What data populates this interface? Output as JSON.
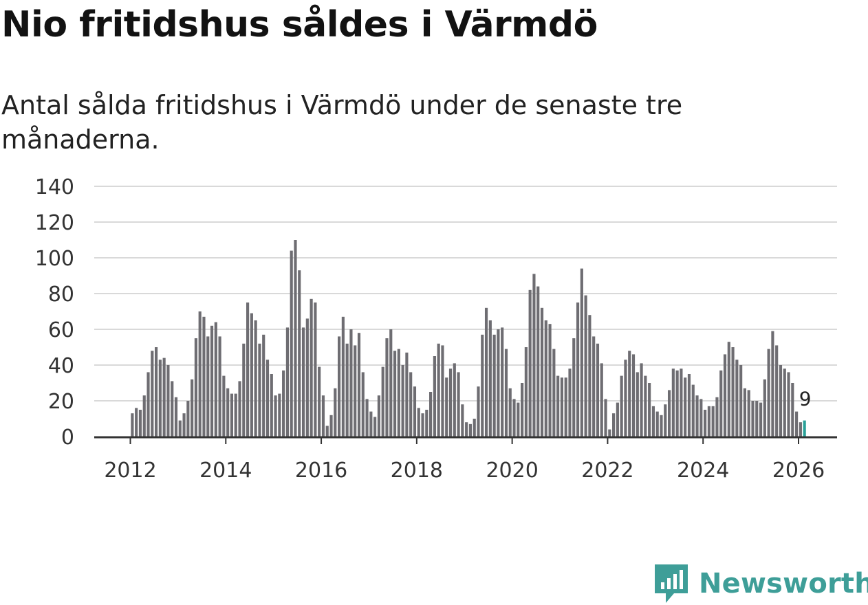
{
  "header": {
    "title": "Nio fritidshus såldes i Värmdö",
    "subtitle": "Antal sålda fritidshus i Värmdö under de senaste tre månaderna."
  },
  "brand": {
    "name": "Newsworthy",
    "color": "#3e9e98"
  },
  "colors": {
    "bar": "#6e6d72",
    "highlight": "#2aa198",
    "grid": "#d9d9d9",
    "axis": "#333333"
  },
  "chart_data": {
    "type": "bar",
    "title": "Nio fritidshus såldes i Värmdö",
    "xlabel": "",
    "ylabel": "",
    "ylim": [
      0,
      140
    ],
    "y_ticks": [
      0,
      20,
      40,
      60,
      80,
      100,
      120,
      140
    ],
    "x_ticks": [
      "2012",
      "2014",
      "2016",
      "2018",
      "2020",
      "2022",
      "2024",
      "2026"
    ],
    "start": "2012-01",
    "interval": "month",
    "highlight_label": "9",
    "values": [
      13,
      16,
      15,
      23,
      36,
      48,
      50,
      43,
      44,
      40,
      31,
      22,
      9,
      13,
      20,
      32,
      55,
      70,
      67,
      56,
      62,
      64,
      56,
      34,
      27,
      24,
      24,
      31,
      52,
      75,
      69,
      65,
      52,
      57,
      43,
      35,
      23,
      24,
      37,
      61,
      104,
      110,
      93,
      61,
      66,
      77,
      75,
      39,
      23,
      6,
      12,
      27,
      56,
      67,
      52,
      60,
      51,
      58,
      36,
      21,
      14,
      11,
      23,
      39,
      55,
      60,
      48,
      49,
      40,
      47,
      36,
      28,
      16,
      13,
      15,
      25,
      45,
      52,
      51,
      33,
      38,
      41,
      36,
      18,
      8,
      7,
      10,
      28,
      57,
      72,
      65,
      57,
      60,
      61,
      49,
      27,
      21,
      19,
      30,
      50,
      82,
      91,
      84,
      72,
      65,
      63,
      49,
      34,
      33,
      33,
      38,
      55,
      75,
      94,
      79,
      68,
      56,
      52,
      41,
      21,
      4,
      13,
      19,
      34,
      43,
      48,
      46,
      36,
      41,
      34,
      30,
      17,
      14,
      12,
      18,
      26,
      38,
      37,
      38,
      33,
      35,
      29,
      23,
      21,
      15,
      17,
      17,
      22,
      37,
      46,
      53,
      50,
      43,
      40,
      27,
      26,
      20,
      20,
      19,
      32,
      49,
      59,
      51,
      40,
      38,
      36,
      30,
      14,
      8,
      9
    ]
  }
}
